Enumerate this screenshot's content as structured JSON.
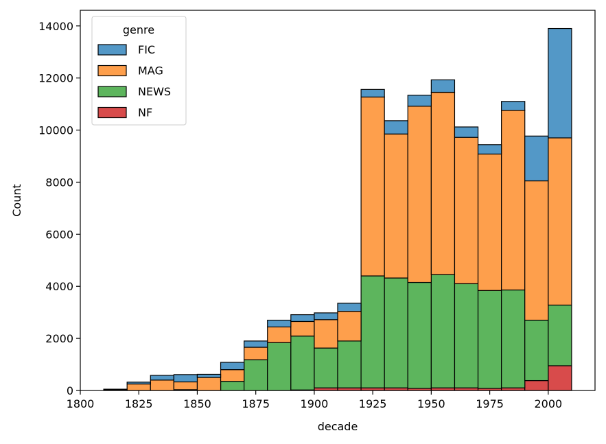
{
  "chart_data": {
    "type": "bar",
    "stacked": true,
    "xlabel": "decade",
    "ylabel": "Count",
    "xlim": [
      1800,
      2020
    ],
    "ylim": [
      0,
      14600
    ],
    "x_ticks": [
      1800,
      1825,
      1850,
      1875,
      1900,
      1925,
      1950,
      1975,
      2000
    ],
    "y_ticks": [
      0,
      2000,
      4000,
      6000,
      8000,
      10000,
      12000,
      14000
    ],
    "bin_edges": [
      1810,
      1820,
      1830,
      1840,
      1850,
      1860,
      1870,
      1880,
      1890,
      1900,
      1910,
      1920,
      1930,
      1940,
      1950,
      1960,
      1970,
      1980,
      1990,
      2000,
      2010
    ],
    "grid": false,
    "legend": {
      "title": "genre",
      "placement": "top-left",
      "entries": [
        "FIC",
        "MAG",
        "NEWS",
        "NF"
      ]
    },
    "series": [
      {
        "name": "NF",
        "color": "#d84b4b",
        "values": [
          0,
          0,
          0,
          30,
          0,
          0,
          0,
          0,
          20,
          100,
          100,
          100,
          100,
          80,
          100,
          100,
          80,
          100,
          380,
          950
        ]
      },
      {
        "name": "NEWS",
        "color": "#5db55d",
        "values": [
          0,
          0,
          0,
          0,
          0,
          350,
          1180,
          1840,
          2070,
          1530,
          1800,
          4300,
          4220,
          4070,
          4350,
          4000,
          3760,
          3760,
          2320,
          2330
        ]
      },
      {
        "name": "MAG",
        "color": "#fe9f4c",
        "values": [
          30,
          250,
          400,
          300,
          500,
          450,
          480,
          600,
          560,
          1090,
          1140,
          6870,
          5530,
          6770,
          7000,
          5620,
          5240,
          6900,
          5350,
          6420
        ]
      },
      {
        "name": "FIC",
        "color": "#5398c7",
        "values": [
          20,
          70,
          180,
          280,
          120,
          280,
          240,
          260,
          260,
          260,
          310,
          290,
          510,
          420,
          480,
          400,
          360,
          340,
          1720,
          4200
        ]
      }
    ]
  }
}
